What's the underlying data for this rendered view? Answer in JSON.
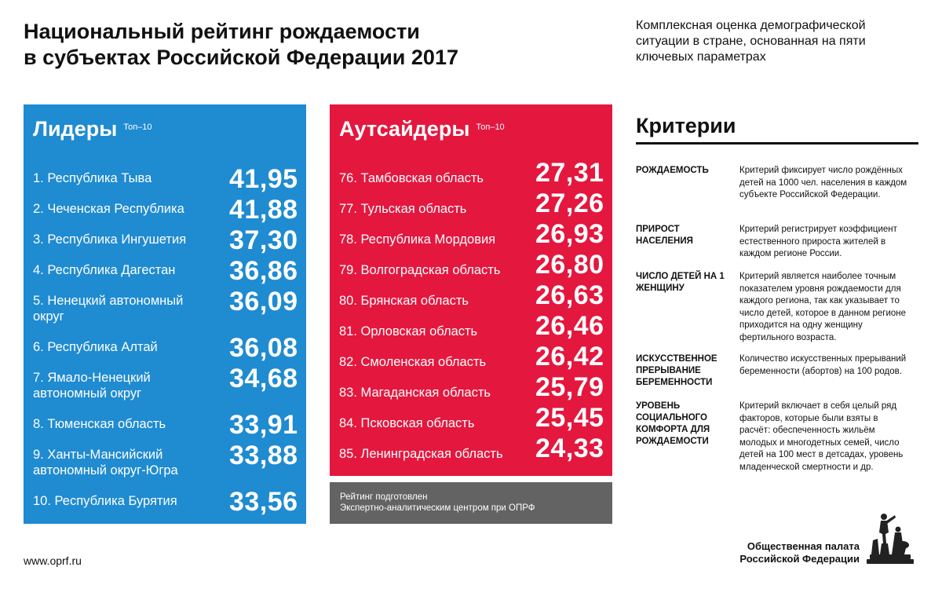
{
  "header": {
    "title_line1": "Национальный рейтинг рождаемости",
    "title_line2": "в субъектах Российской Федерации 2017",
    "subtitle": "Комплексная оценка демографической ситуации в стране, основанная на пяти ключевых параметрах"
  },
  "leaders": {
    "heading": "Лидеры",
    "tag": "Топ–10",
    "items": [
      {
        "name": "1. Республика Тыва",
        "value": "41,95"
      },
      {
        "name": "2. Чеченская Республика",
        "value": "41,88"
      },
      {
        "name": "3. Республика Ингушетия",
        "value": "37,30"
      },
      {
        "name": "4. Республика Дагестан",
        "value": "36,86"
      },
      {
        "name": "5. Ненецкий автономный округ",
        "value": "36,09"
      },
      {
        "name": "6. Республика Алтай",
        "value": "36,08"
      },
      {
        "name": "7. Ямало-Ненецкий автономный округ",
        "value": "34,68"
      },
      {
        "name": "8. Тюменская область",
        "value": "33,91"
      },
      {
        "name": "9. Ханты-Мансийский автономный округ-Югра",
        "value": "33,88"
      },
      {
        "name": "10. Республика Бурятия",
        "value": "33,56"
      }
    ]
  },
  "outsiders": {
    "heading": "Аутсайдеры",
    "tag": "Топ–10",
    "items": [
      {
        "name": "76. Тамбовская область",
        "value": "27,31"
      },
      {
        "name": "77. Тульская область",
        "value": "27,26"
      },
      {
        "name": "78. Республика Мордовия",
        "value": "26,93"
      },
      {
        "name": "79. Волгоградская область",
        "value": "26,80"
      },
      {
        "name": "80. Брянская область",
        "value": "26,63"
      },
      {
        "name": "81. Орловская область",
        "value": "26,46"
      },
      {
        "name": "82. Смоленская область",
        "value": "26,42"
      },
      {
        "name": "83. Магаданская область",
        "value": "25,79"
      },
      {
        "name": "84. Псковская область",
        "value": "25,45"
      },
      {
        "name": "85. Ленинградская область",
        "value": "24,33"
      }
    ],
    "credit_line1": "Рейтинг подготовлен",
    "credit_line2": "Экспертно-аналитическим центром при ОПРФ"
  },
  "criteria": {
    "heading": "Критерии",
    "items": [
      {
        "term": "Рождаемость",
        "desc": "Критерий фиксирует число рождённых детей на 1000 чел. населения в каждом субъекте Российской Федерации."
      },
      {
        "term": "Прирост населения",
        "desc": "Критерий регистрирует коэффициент естественного прироста жителей в каждом регионе России."
      },
      {
        "term": "Число детей на 1 женщину",
        "desc": "Критерий является наиболее точным показателем уровня рождаемости для каждого региона, так как указывает то число детей, которое в данном регионе приходится на одну женщину фертильного возраста."
      },
      {
        "term": "Искусственное прерывание беременности",
        "desc": "Количество искусственных прерываний беременности (абортов) на 100 родов."
      },
      {
        "term": "Уровень социального комфорта для рождаемости",
        "desc": "Критерий включает в себя целый ряд факторов, которые были взяты в расчёт: обеспеченность жильём молодых и многодетных семей, число детей на 100 мест в детсадах, уровень младенческой смертности и др."
      }
    ]
  },
  "footer": {
    "url": "www.oprf.ru",
    "org_line1": "Общественная палата",
    "org_line2": "Российской Федерации"
  },
  "colors": {
    "leaders_bg": "#1f8bd1",
    "outsiders_bg": "#e4173e",
    "credit_bg": "#636363"
  }
}
